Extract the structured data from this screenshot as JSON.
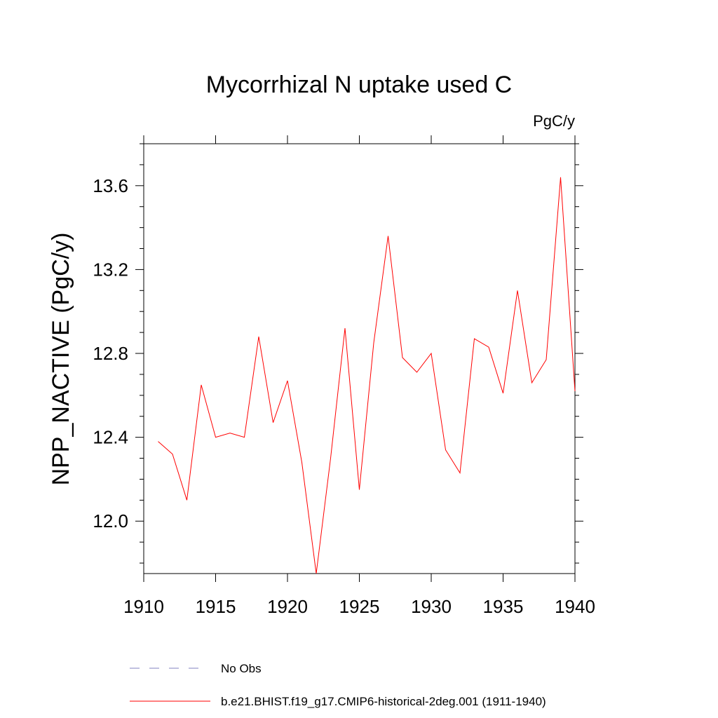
{
  "chart_data": {
    "type": "line",
    "title": "Mycorrhizal N uptake used C",
    "units_label": "PgC/y",
    "ylabel": "NPP_NACTIVE  (PgC/y)",
    "xlabel": "",
    "xlim": [
      1910,
      1940
    ],
    "ylim": [
      11.75,
      13.8
    ],
    "x_ticks": [
      1910,
      1915,
      1920,
      1925,
      1930,
      1935,
      1940
    ],
    "x_tick_labels": [
      "1910",
      "1915",
      "1920",
      "1925",
      "1930",
      "1935",
      "1940"
    ],
    "y_ticks": [
      12.0,
      12.4,
      12.8,
      13.2,
      13.6
    ],
    "y_tick_labels": [
      "12.0",
      "12.4",
      "12.8",
      "13.2",
      "13.6"
    ],
    "grid": false,
    "legend_position": "bottom",
    "series": [
      {
        "name": "b.e21.BHIST.f19_g17.CMIP6-historical-2deg.001 (1911-1940)",
        "color": "#ff0000",
        "x": [
          1911,
          1912,
          1913,
          1914,
          1915,
          1916,
          1917,
          1918,
          1919,
          1920,
          1921,
          1922,
          1923,
          1924,
          1925,
          1926,
          1927,
          1928,
          1929,
          1930,
          1931,
          1932,
          1933,
          1934,
          1935,
          1936,
          1937,
          1938,
          1939,
          1940
        ],
        "y": [
          12.38,
          12.32,
          12.1,
          12.65,
          12.4,
          12.42,
          12.4,
          12.88,
          12.47,
          12.67,
          12.28,
          11.75,
          12.3,
          12.92,
          12.15,
          12.85,
          13.36,
          12.78,
          12.71,
          12.8,
          12.34,
          12.23,
          12.87,
          12.83,
          12.61,
          13.1,
          12.66,
          12.77,
          13.64,
          12.62
        ]
      }
    ],
    "legend": [
      {
        "label": "No Obs",
        "color": "#8080c0",
        "style": "dashed"
      },
      {
        "label": "b.e21.BHIST.f19_g17.CMIP6-historical-2deg.001 (1911-1940)",
        "color": "#ff0000",
        "style": "solid"
      }
    ]
  }
}
